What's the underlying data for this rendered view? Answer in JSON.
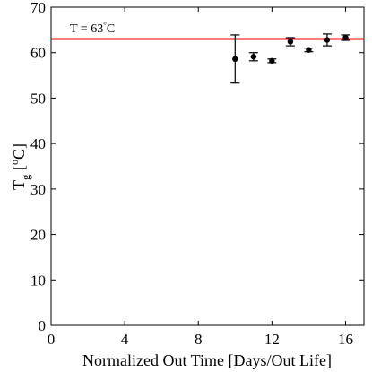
{
  "chart_data": {
    "type": "scatter",
    "title": "",
    "xlabel": "Normalized Out Time [Days/Out Life]",
    "ylabel": {
      "base": "T",
      "sub": "g",
      "open": " [",
      "sup": "o",
      "unit": "C]"
    },
    "xlim": [
      0,
      17
    ],
    "ylim": [
      0,
      70
    ],
    "xticks": [
      0,
      4,
      8,
      12,
      16
    ],
    "yticks": [
      0,
      10,
      20,
      30,
      40,
      50,
      60,
      70
    ],
    "grid": false,
    "points": [
      {
        "x": 10,
        "y": 58.6,
        "err": 5.3
      },
      {
        "x": 11,
        "y": 59.1,
        "err": 0.9
      },
      {
        "x": 12,
        "y": 58.2,
        "err": 0.4
      },
      {
        "x": 13,
        "y": 62.4,
        "err": 0.9
      },
      {
        "x": 14,
        "y": 60.6,
        "err": 0.4
      },
      {
        "x": 15,
        "y": 62.8,
        "err": 1.3
      },
      {
        "x": 16,
        "y": 63.3,
        "err": 0.6
      }
    ],
    "reference_line": {
      "y": 63,
      "color": "#ff0000",
      "label": {
        "prefix": "T = 63",
        "deg": "°",
        "suffix": "C"
      }
    },
    "marker_color": "#000000"
  }
}
